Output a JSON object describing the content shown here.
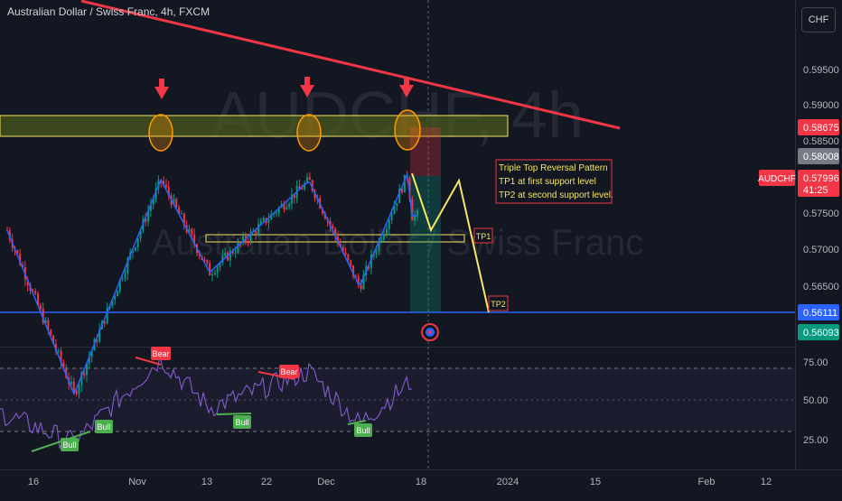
{
  "header": {
    "symbol_title": "Australian Dollar / Swiss Franc, 4h, FXCM",
    "currency_button": "CHF"
  },
  "watermark": {
    "ticker": "AUDCHF, 4h",
    "name": "Australian Dollar / Swiss Franc"
  },
  "price_axis": {
    "ticks": [
      "0.59500",
      "0.59000",
      "0.58500",
      "0.58000",
      "0.57500",
      "0.57000",
      "0.56500"
    ],
    "badges": [
      {
        "text": "0.58675",
        "color": "#f23645"
      },
      {
        "text": "0.58008",
        "color": "#787b86"
      },
      {
        "text": "0.57996",
        "extra": "41:25",
        "color": "#f23645"
      },
      {
        "text": "0.56111",
        "color": "#2962ff"
      },
      {
        "text": "0.56093",
        "color": "#089981"
      }
    ],
    "symbol_tag": {
      "text": "AUDCHF",
      "color": "#f23645"
    }
  },
  "rsi_axis": {
    "ticks": [
      "75.00",
      "50.00",
      "25.00"
    ]
  },
  "time_axis": {
    "ticks": [
      "16",
      "Nov",
      "13",
      "22",
      "Dec",
      "18",
      "2024",
      "15",
      "Feb",
      "12"
    ]
  },
  "annotations": {
    "note_lines": [
      "Triple Top Reversal Pattern",
      "TP1 at first support level",
      "TP2 at second support level."
    ],
    "tp1": "TP1",
    "tp2": "TP2",
    "rsi_labels": [
      "Bull",
      "Bull",
      "Bull",
      "Bear",
      "Bear"
    ]
  },
  "colors": {
    "background": "#131722",
    "up": "#089981",
    "down": "#f23645",
    "ma": "#2962ff",
    "rsi": "#7e57c2",
    "trendline": "#f23645",
    "zone_fill": "#4a5a1c",
    "zone_border": "#f5e663",
    "projection": "#f5e663",
    "circle": "#ff9800",
    "support_line": "#2962ff"
  },
  "chart_data": {
    "type": "candlestick",
    "title": "Australian Dollar / Swiss Franc, 4h, FXCM",
    "symbol": "AUDCHF",
    "timeframe": "4h",
    "last_price": 0.57996,
    "resistance_zone": [
      0.585,
      0.5878
    ],
    "support_tp1": 0.5713,
    "support_tp2": 0.5611,
    "projected_path": [
      0.5805,
      0.572,
      0.5802,
      0.5611
    ],
    "approx_close_path": [
      {
        "x": "Oct 16",
        "y": 0.5785
      },
      {
        "x": "Oct 27",
        "y": 0.5617
      },
      {
        "x": "Nov 7",
        "y": 0.5837
      },
      {
        "x": "Nov 17",
        "y": 0.5742
      },
      {
        "x": "Nov 29",
        "y": 0.5836
      },
      {
        "x": "Dec 7",
        "y": 0.5727
      },
      {
        "x": "Dec 14",
        "y": 0.5843
      },
      {
        "x": "Dec 15",
        "y": 0.58
      }
    ],
    "rsi_range": [
      0,
      100
    ],
    "rsi_levels": [
      70,
      50,
      30
    ],
    "rsi_path": [
      {
        "x": "Oct 16",
        "y": 42
      },
      {
        "x": "Oct 27",
        "y": 23
      },
      {
        "x": "Nov 7",
        "y": 76
      },
      {
        "x": "Nov 17",
        "y": 45
      },
      {
        "x": "Nov 29",
        "y": 68
      },
      {
        "x": "Dec 7",
        "y": 35
      },
      {
        "x": "Dec 15",
        "y": 62
      }
    ]
  }
}
